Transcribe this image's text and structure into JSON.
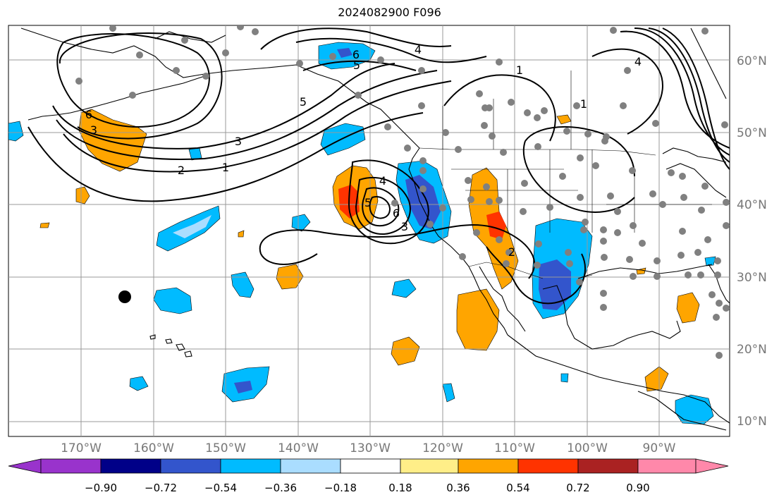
{
  "title": "2024082900 F096",
  "longitude_labels": [
    "170°W",
    "160°W",
    "150°W",
    "140°W",
    "130°W",
    "120°W",
    "110°W",
    "100°W",
    "90°W"
  ],
  "latitude_labels": [
    "60°N",
    "50°N",
    "40°N",
    "30°N",
    "20°N",
    "10°N"
  ],
  "colorbar": {
    "colors": [
      "#9933cc",
      "#000088",
      "#3355cc",
      "#00bbff",
      "#aaddff",
      "#ffffff",
      "#ffee88",
      "#ffa500",
      "#ff3300",
      "#aa2222",
      "#ff88aa"
    ],
    "tick_labels": [
      "−0.90",
      "−0.72",
      "−0.54",
      "−0.36",
      "−0.18",
      "0.18",
      "0.36",
      "0.54",
      "0.72",
      "0.90"
    ]
  },
  "contour_labels": [
    "6",
    "5",
    "4",
    "1",
    "5",
    "6",
    "4",
    "3",
    "3",
    "2",
    "1",
    "4",
    "5",
    "6",
    "3",
    "1",
    "2"
  ],
  "colors": {
    "land_outline": "#000000",
    "grid": "#999999",
    "station_dot": "#808080",
    "positive_light": "#ffa500",
    "positive_mid": "#ff3300",
    "negative_light": "#00bbff",
    "negative_mid": "#3355cc"
  }
}
